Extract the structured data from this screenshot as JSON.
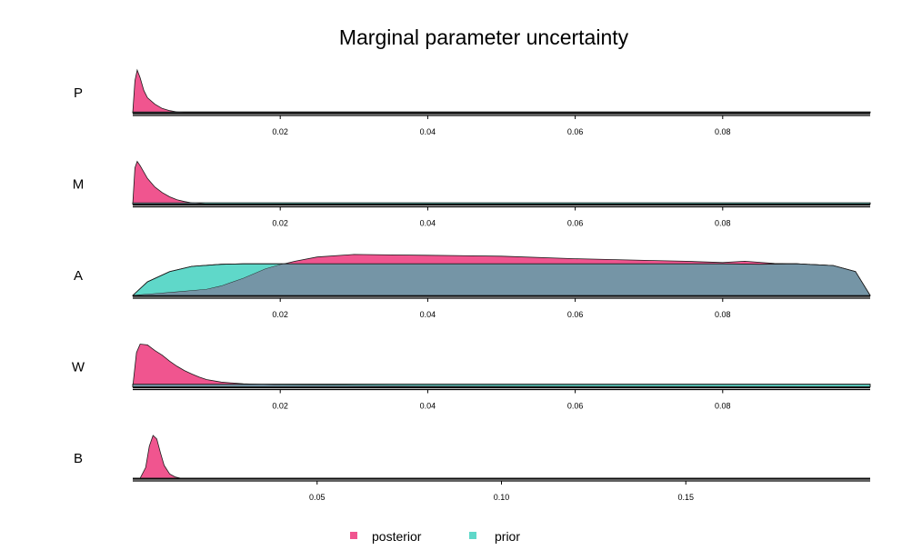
{
  "chart_data": {
    "type": "area",
    "title": "Marginal parameter uncertainty",
    "legend": {
      "placement": "bottom",
      "entries": [
        {
          "name": "posterior",
          "color": "#f0558f"
        },
        {
          "name": "prior",
          "color": "#5fd8c9"
        }
      ]
    },
    "overlap_color": "#7595a6",
    "panels": [
      {
        "name": "P",
        "xlim": [
          0.0,
          0.1
        ],
        "ticks": [
          0.02,
          0.04,
          0.06,
          0.08
        ],
        "tick_labels": [
          "0.02",
          "0.04",
          "0.06",
          "0.08"
        ],
        "posterior": {
          "x": [
            0.0,
            0.0003,
            0.0006,
            0.001,
            0.0015,
            0.002,
            0.003,
            0.004,
            0.005,
            0.006,
            0.007,
            0.1
          ],
          "y": [
            0.0,
            0.75,
            1.0,
            0.82,
            0.52,
            0.35,
            0.2,
            0.1,
            0.05,
            0.02,
            0.0,
            0.0
          ]
        },
        "prior": {
          "x": [
            0.0,
            0.1
          ],
          "y": [
            0.02,
            0.02
          ]
        }
      },
      {
        "name": "M",
        "xlim": [
          0.0,
          0.1
        ],
        "ticks": [
          0.02,
          0.04,
          0.06,
          0.08
        ],
        "tick_labels": [
          "0.02",
          "0.04",
          "0.06",
          "0.08"
        ],
        "posterior": {
          "x": [
            0.0,
            0.0003,
            0.0006,
            0.001,
            0.002,
            0.003,
            0.004,
            0.005,
            0.006,
            0.007,
            0.008,
            0.01,
            0.1
          ],
          "y": [
            0.0,
            0.85,
            1.0,
            0.9,
            0.6,
            0.4,
            0.27,
            0.17,
            0.1,
            0.06,
            0.03,
            0.0,
            0.0
          ]
        },
        "prior": {
          "x": [
            0.0,
            0.1
          ],
          "y": [
            0.03,
            0.03
          ]
        }
      },
      {
        "name": "A",
        "xlim": [
          0.0,
          0.1
        ],
        "ticks": [
          0.02,
          0.04,
          0.06,
          0.08
        ],
        "tick_labels": [
          "0.02",
          "0.04",
          "0.06",
          "0.08"
        ],
        "posterior": {
          "x": [
            0.0,
            0.003,
            0.006,
            0.01,
            0.012,
            0.015,
            0.018,
            0.02,
            0.022,
            0.025,
            0.03,
            0.035,
            0.04,
            0.05,
            0.06,
            0.07,
            0.075,
            0.08,
            0.083,
            0.087,
            0.09,
            0.095,
            0.098,
            0.1
          ],
          "y": [
            0.0,
            0.04,
            0.08,
            0.14,
            0.22,
            0.4,
            0.62,
            0.72,
            0.8,
            0.9,
            0.96,
            0.95,
            0.94,
            0.92,
            0.86,
            0.82,
            0.8,
            0.77,
            0.8,
            0.75,
            0.74,
            0.7,
            0.56,
            0.0
          ]
        },
        "prior": {
          "x": [
            0.0,
            0.002,
            0.005,
            0.008,
            0.012,
            0.015,
            0.02,
            0.03,
            0.04,
            0.05,
            0.06,
            0.07,
            0.08,
            0.085,
            0.09,
            0.095,
            0.098,
            0.1
          ],
          "y": [
            0.0,
            0.32,
            0.56,
            0.68,
            0.73,
            0.74,
            0.74,
            0.74,
            0.74,
            0.74,
            0.74,
            0.74,
            0.74,
            0.73,
            0.74,
            0.7,
            0.56,
            0.0
          ]
        }
      },
      {
        "name": "W",
        "xlim": [
          0.0,
          0.1
        ],
        "ticks": [
          0.02,
          0.04,
          0.06,
          0.08
        ],
        "tick_labels": [
          "0.02",
          "0.04",
          "0.06",
          "0.08"
        ],
        "posterior": {
          "x": [
            0.0,
            0.0005,
            0.001,
            0.002,
            0.003,
            0.004,
            0.005,
            0.006,
            0.007,
            0.008,
            0.009,
            0.01,
            0.012,
            0.015,
            0.02,
            0.03,
            0.04,
            0.05,
            0.1
          ],
          "y": [
            0.0,
            0.8,
            1.0,
            0.98,
            0.85,
            0.74,
            0.6,
            0.48,
            0.38,
            0.3,
            0.23,
            0.17,
            0.11,
            0.07,
            0.04,
            0.03,
            0.02,
            0.01,
            0.0
          ]
        },
        "prior": {
          "x": [
            0.0,
            0.1
          ],
          "y": [
            0.06,
            0.06
          ]
        }
      },
      {
        "name": "B",
        "xlim": [
          0.0,
          0.2
        ],
        "ticks": [
          0.05,
          0.1,
          0.15
        ],
        "tick_labels": [
          "0.05",
          "0.10",
          "0.15"
        ],
        "posterior": {
          "x": [
            0.0,
            0.002,
            0.0035,
            0.0045,
            0.0055,
            0.0065,
            0.0075,
            0.0085,
            0.01,
            0.0115,
            0.013,
            0.2
          ],
          "y": [
            0.0,
            0.0,
            0.25,
            0.75,
            1.0,
            0.92,
            0.6,
            0.3,
            0.1,
            0.03,
            0.0,
            0.0
          ]
        },
        "prior": {
          "x": [
            0.0,
            0.2
          ],
          "y": [
            0.0,
            0.0
          ]
        }
      }
    ]
  }
}
